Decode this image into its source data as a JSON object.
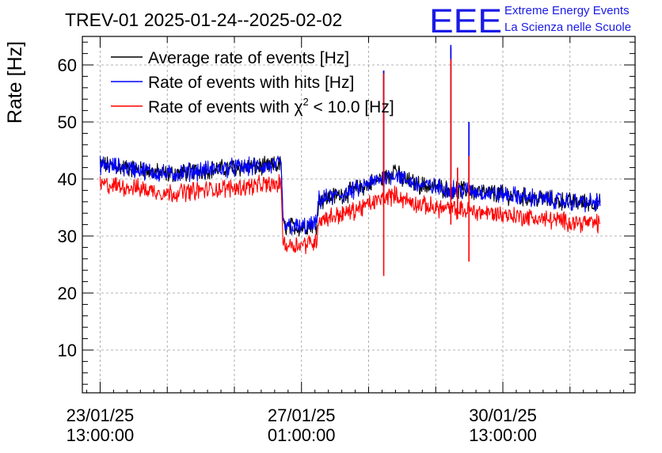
{
  "header": {
    "logo_text": "EEE",
    "project_line1": "Extreme Energy Events",
    "project_line2": "La Scienza nelle Scuole"
  },
  "colors": {
    "average": "#000000",
    "hits": "#0000ff",
    "chi2": "#ff0000",
    "logo": "#1a1ae6",
    "grid": "#9a9a9a"
  },
  "chart_data": {
    "type": "line",
    "title": "TREV-01 2025-01-24--2025-02-02",
    "ylabel": "Rate [Hz]",
    "xlabel": "",
    "x_unit": "hours since 23/01/25 13:00:00",
    "xlim": [
      -5.3,
      159.4
    ],
    "ylim": [
      2.5,
      65
    ],
    "y_ticks": [
      10,
      20,
      30,
      40,
      50,
      60
    ],
    "x_ticks": [
      {
        "value": 0,
        "label_date": "23/01/25",
        "label_time": "13:00:00"
      },
      {
        "value": 60,
        "label_date": "27/01/25",
        "label_time": "01:00:00"
      },
      {
        "value": 120,
        "label_date": "30/01/25",
        "label_time": "13:00:00"
      }
    ],
    "grid": true,
    "legend_position": "top-left",
    "legend": [
      {
        "label": "Average rate of events [Hz]",
        "series": "average"
      },
      {
        "label": "Rate of events with hits [Hz]",
        "series": "hits"
      },
      {
        "label_prefix": "Rate of events with ",
        "label_symbol": "χ",
        "label_sup": "2",
        "label_suffix": " < 10.0 [Hz]",
        "series": "chi2"
      }
    ],
    "series": [
      {
        "name": "Average rate of events [Hz]",
        "key": "average",
        "x": [
          0,
          10,
          20,
          30,
          40,
          50,
          54,
          54.5,
          60,
          62,
          64.5,
          65,
          75,
          82,
          86,
          88,
          89,
          90,
          95,
          100,
          110,
          120,
          130,
          140,
          149
        ],
        "y": [
          42.5,
          41.8,
          40.8,
          41.5,
          42.0,
          42.2,
          42.5,
          31.8,
          31.5,
          31.8,
          32.0,
          36.2,
          37.8,
          39.6,
          40.6,
          42.0,
          40.6,
          40.0,
          39.0,
          38.5,
          37.9,
          37.3,
          36.6,
          36.0,
          35.8
        ],
        "spikes": [
          {
            "x": 84.5,
            "y": 59.0,
            "low": 37.0
          },
          {
            "x": 104.5,
            "y": 63.0,
            "low": 37.0
          },
          {
            "x": 109.9,
            "y": 50.0,
            "low": 37.0
          }
        ]
      },
      {
        "name": "Rate of events with hits [Hz]",
        "key": "hits",
        "x": [
          0,
          10,
          20,
          30,
          40,
          50,
          54,
          54.5,
          60,
          62,
          64.5,
          65,
          75,
          82,
          86,
          88,
          89,
          90,
          95,
          100,
          110,
          120,
          130,
          140,
          149
        ],
        "y": [
          42.5,
          41.8,
          40.8,
          41.5,
          42.0,
          42.2,
          42.5,
          31.8,
          31.5,
          31.8,
          32.0,
          36.2,
          37.8,
          39.6,
          40.6,
          40.8,
          40.6,
          40.0,
          39.0,
          38.5,
          37.9,
          37.3,
          36.6,
          36.0,
          35.8
        ],
        "spikes": [
          {
            "x": 84.5,
            "y": 59.0,
            "low": 37.0
          },
          {
            "x": 104.5,
            "y": 63.5,
            "low": 37.0
          },
          {
            "x": 109.9,
            "y": 50.0,
            "low": 37.0
          }
        ]
      },
      {
        "name": "Rate of events with χ2 < 10.0 [Hz]",
        "key": "chi2",
        "x": [
          0,
          10,
          20,
          30,
          40,
          50,
          54,
          54.5,
          60,
          62,
          64.5,
          65,
          75,
          82,
          86,
          88,
          89,
          90,
          95,
          100,
          110,
          120,
          130,
          140,
          149
        ],
        "y": [
          39.0,
          38.5,
          37.5,
          38.0,
          38.5,
          39.0,
          39.0,
          28.5,
          28.5,
          28.8,
          29.0,
          32.8,
          34.3,
          36.0,
          37.0,
          37.1,
          37.0,
          36.5,
          35.5,
          35.0,
          34.4,
          33.8,
          33.1,
          32.5,
          32.2
        ],
        "spikes": [
          {
            "x": 84.5,
            "y": 58.5,
            "low": 23.0
          },
          {
            "x": 104.5,
            "y": 61.0,
            "low": 32.0
          },
          {
            "x": 109.9,
            "y": 44.0,
            "low": 25.5
          },
          {
            "x": 106.5,
            "y": 42.0,
            "low": 33.0
          }
        ]
      }
    ]
  }
}
